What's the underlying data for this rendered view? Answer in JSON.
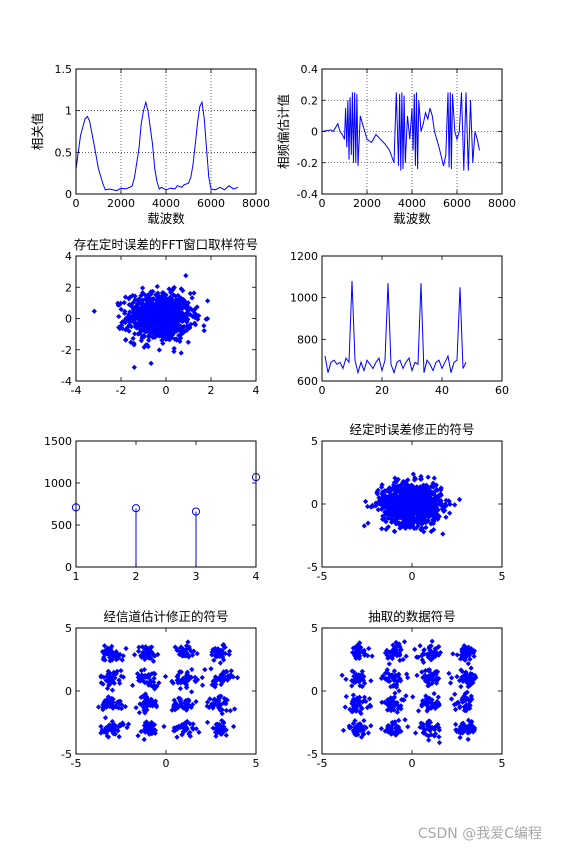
{
  "watermark": "CSDN @我爱C编程",
  "chart_data": [
    {
      "type": "line",
      "title": "",
      "xlabel": "载波数",
      "ylabel": "相关值",
      "xlim": [
        0,
        8000
      ],
      "ylim": [
        0,
        1.5
      ],
      "xticks": [
        0,
        2000,
        4000,
        6000,
        8000
      ],
      "yticks": [
        0,
        0.5,
        1,
        1.5
      ],
      "xtick_labels": [
        "0",
        "2000",
        "4000",
        "6000",
        "8000"
      ],
      "ytick_labels": [
        "0",
        "0.5",
        "1",
        "1.5"
      ],
      "grid": true,
      "color": "#0000ff",
      "series": [
        {
          "x": [
            0,
            200,
            400,
            500,
            600,
            800,
            1000,
            1200,
            1300,
            1500,
            1800,
            2000,
            2200,
            2400,
            2500,
            2600,
            2800,
            2900,
            3000,
            3100,
            3200,
            3400,
            3500,
            3600,
            3700,
            3800,
            4000,
            4200,
            4400,
            4500,
            4700,
            4800,
            5000,
            5100,
            5200,
            5300,
            5400,
            5500,
            5600,
            5700,
            5800,
            5900,
            6000,
            6200,
            6400,
            6600,
            6800,
            7000,
            7200
          ],
          "y": [
            0.3,
            0.7,
            0.9,
            0.93,
            0.88,
            0.6,
            0.3,
            0.12,
            0.05,
            0.06,
            0.04,
            0.07,
            0.06,
            0.08,
            0.1,
            0.2,
            0.55,
            0.85,
            1.0,
            1.1,
            1.0,
            0.6,
            0.3,
            0.15,
            0.06,
            0.08,
            0.05,
            0.07,
            0.06,
            0.1,
            0.08,
            0.11,
            0.13,
            0.2,
            0.35,
            0.6,
            0.85,
            1.05,
            1.1,
            0.9,
            0.55,
            0.2,
            0.06,
            0.05,
            0.08,
            0.05,
            0.1,
            0.06,
            0.08
          ]
        }
      ]
    },
    {
      "type": "line",
      "title": "",
      "xlabel": "载波数",
      "ylabel": "相频偏估计值",
      "xlim": [
        0,
        8000
      ],
      "ylim": [
        -0.4,
        0.4
      ],
      "xticks": [
        0,
        2000,
        4000,
        6000,
        8000
      ],
      "yticks": [
        -0.4,
        -0.2,
        0,
        0.2,
        0.4
      ],
      "xtick_labels": [
        "0",
        "2000",
        "4000",
        "6000",
        "8000"
      ],
      "ytick_labels": [
        "-0.4",
        "-0.2",
        "0",
        "0.2",
        "0.4"
      ],
      "grid": true,
      "color": "#0000ff",
      "series": [
        {
          "x": [
            0,
            400,
            500,
            700,
            800,
            900,
            1000,
            1050,
            1100,
            1150,
            1200,
            1250,
            1300,
            1350,
            1400,
            1450,
            1500,
            1550,
            1600,
            1700,
            1800,
            1900,
            2000,
            2200,
            2400,
            2600,
            2800,
            3000,
            3200,
            3300,
            3400,
            3450,
            3500,
            3550,
            3600,
            3650,
            3700,
            3800,
            3900,
            4000,
            4050,
            4100,
            4150,
            4200,
            4250,
            4300,
            4400,
            4500,
            4600,
            4700,
            4800,
            4900,
            5000,
            5200,
            5400,
            5500,
            5600,
            5650,
            5700,
            5750,
            5800,
            5900,
            6000,
            6100,
            6200,
            6300,
            6400,
            6500,
            6600,
            6700,
            6800,
            6900,
            7000
          ],
          "y": [
            0,
            0.01,
            0.0,
            0.05,
            0.0,
            -0.02,
            -0.05,
            0.15,
            -0.1,
            0.2,
            -0.18,
            0.22,
            -0.15,
            0.25,
            -0.2,
            0.25,
            -0.2,
            0.24,
            -0.22,
            0.1,
            0.05,
            0.0,
            -0.05,
            -0.07,
            -0.02,
            -0.05,
            -0.08,
            -0.12,
            -0.2,
            0.25,
            -0.22,
            0.24,
            -0.25,
            0.25,
            -0.24,
            0.23,
            -0.2,
            0.1,
            -0.05,
            0.15,
            -0.12,
            0.24,
            -0.22,
            0.25,
            -0.24,
            0.2,
            0.0,
            0.05,
            0.12,
            0.08,
            0.15,
            0.1,
            0.0,
            -0.1,
            -0.22,
            -0.15,
            0.25,
            -0.23,
            0.25,
            -0.24,
            0.24,
            0.0,
            -0.05,
            0.0,
            0.25,
            -0.25,
            0.25,
            -0.25,
            0.2,
            -0.2,
            0.0,
            -0.05,
            -0.12
          ]
        }
      ]
    },
    {
      "type": "scatter",
      "title": "存在定时误差的FFT窗口取样符号",
      "xlabel": "",
      "ylabel": "",
      "xlim": [
        -4,
        4
      ],
      "ylim": [
        -4,
        4
      ],
      "xticks": [
        -4,
        -2,
        0,
        2,
        4
      ],
      "yticks": [
        -4,
        -2,
        0,
        2,
        4
      ],
      "xtick_labels": [
        "-4",
        "-2",
        "0",
        "2",
        "4"
      ],
      "ytick_labels": [
        "-4",
        "-2",
        "0",
        "2",
        "4"
      ],
      "grid": false,
      "color": "#0000ff",
      "distribution": {
        "kind": "gaussian",
        "n": 900,
        "cx": -0.3,
        "cy": 0.1,
        "sx": 1.3,
        "sy": 1.4,
        "clip": 3.6
      }
    },
    {
      "type": "line",
      "title": "",
      "xlabel": "",
      "ylabel": "",
      "xlim": [
        0,
        60
      ],
      "ylim": [
        600,
        1200
      ],
      "xticks": [
        0,
        20,
        40,
        60
      ],
      "yticks": [
        600,
        800,
        1000,
        1200
      ],
      "xtick_labels": [
        "0",
        "20",
        "40",
        "60"
      ],
      "ytick_labels": [
        "600",
        "800",
        "1000",
        "1200"
      ],
      "grid": false,
      "color": "#0000ff",
      "series": [
        {
          "x": [
            1,
            2,
            3,
            4,
            5,
            6,
            7,
            8,
            9,
            10,
            11,
            12,
            13,
            14,
            15,
            16,
            17,
            18,
            19,
            20,
            21,
            22,
            23,
            24,
            25,
            26,
            27,
            28,
            29,
            30,
            31,
            32,
            33,
            34,
            35,
            36,
            37,
            38,
            39,
            40,
            41,
            42,
            43,
            44,
            45,
            46,
            47,
            48
          ],
          "y": [
            720,
            640,
            690,
            700,
            680,
            690,
            660,
            710,
            690,
            1080,
            700,
            640,
            690,
            650,
            700,
            680,
            660,
            690,
            710,
            650,
            700,
            1070,
            680,
            640,
            690,
            700,
            660,
            690,
            710,
            650,
            690,
            680,
            1070,
            640,
            700,
            680,
            650,
            690,
            700,
            660,
            690,
            720,
            640,
            690,
            700,
            1050,
            660,
            690
          ]
        }
      ]
    },
    {
      "type": "stem",
      "title": "",
      "xlabel": "",
      "ylabel": "",
      "xlim": [
        1,
        4
      ],
      "ylim": [
        0,
        1500
      ],
      "xticks": [
        1,
        2,
        3,
        4
      ],
      "yticks": [
        0,
        500,
        1000,
        1500
      ],
      "xtick_labels": [
        "1",
        "2",
        "3",
        "4"
      ],
      "ytick_labels": [
        "0",
        "500",
        "1000",
        "1500"
      ],
      "grid": false,
      "color": "#0000ff",
      "series": [
        {
          "x": [
            1,
            2,
            3,
            4
          ],
          "y": [
            710,
            700,
            660,
            1070
          ]
        }
      ]
    },
    {
      "type": "scatter",
      "title": "经定时误差修正的符号",
      "xlabel": "",
      "ylabel": "",
      "xlim": [
        -5,
        5
      ],
      "ylim": [
        -5,
        5
      ],
      "xticks": [
        -5,
        0,
        5
      ],
      "yticks": [
        -5,
        0,
        5
      ],
      "xtick_labels": [
        "-5",
        "0",
        "5"
      ],
      "ytick_labels": [
        "-5",
        "0",
        "5"
      ],
      "grid": false,
      "color": "#0000ff",
      "distribution": {
        "kind": "gaussian",
        "n": 1000,
        "cx": 0.0,
        "cy": 0.0,
        "sx": 1.5,
        "sy": 1.5,
        "clip": 4.5
      }
    },
    {
      "type": "scatter",
      "title": "经信道估计修正的符号",
      "xlabel": "",
      "ylabel": "",
      "xlim": [
        -5,
        5
      ],
      "ylim": [
        -5,
        5
      ],
      "xticks": [
        -5,
        0,
        5
      ],
      "yticks": [
        -5,
        0,
        5
      ],
      "xtick_labels": [
        "-5",
        "0",
        "5"
      ],
      "ytick_labels": [
        "-5",
        "0",
        "5"
      ],
      "grid": false,
      "color": "#0000ff",
      "distribution": {
        "kind": "qam16",
        "levels": [
          -3,
          -1,
          1,
          3
        ],
        "per_point": 40,
        "spread": 0.32
      }
    },
    {
      "type": "scatter",
      "title": "抽取的数据符号",
      "xlabel": "",
      "ylabel": "",
      "xlim": [
        -5,
        5
      ],
      "ylim": [
        -5,
        5
      ],
      "xticks": [
        -5,
        0,
        5
      ],
      "yticks": [
        -5,
        0,
        5
      ],
      "xtick_labels": [
        "-5",
        "0",
        "5"
      ],
      "ytick_labels": [
        "-5",
        "0",
        "5"
      ],
      "grid": false,
      "color": "#0000ff",
      "distribution": {
        "kind": "qam16",
        "levels": [
          -3,
          -1,
          1,
          3
        ],
        "per_point": 40,
        "spread": 0.32
      }
    }
  ]
}
